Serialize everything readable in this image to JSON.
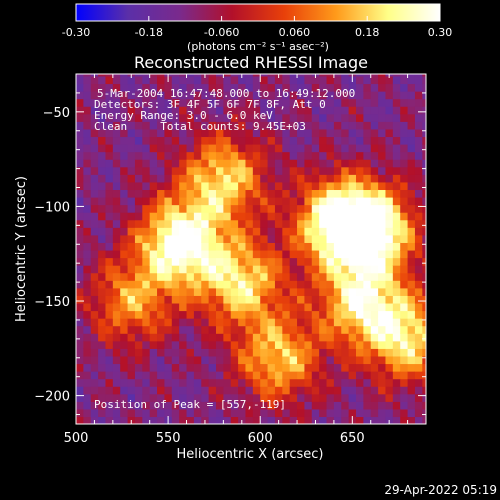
{
  "chart_data": {
    "type": "heatmap",
    "title": "Reconstructed RHESSI Image",
    "xlabel": "Heliocentric X (arcsec)",
    "ylabel": "Heliocentric Y (arcsec)",
    "xlim": [
      500,
      690
    ],
    "ylim": [
      -215,
      -30
    ],
    "x_ticks": [
      500,
      550,
      600,
      650
    ],
    "y_ticks": [
      -50,
      -100,
      -150,
      -200
    ],
    "colorbar": {
      "range": [
        -0.3,
        0.3
      ],
      "tick_labels": [
        "-0.30",
        "-0.18",
        "-0.060",
        "0.060",
        "0.18",
        "0.30"
      ],
      "tick_values": [
        -0.3,
        -0.18,
        -0.06,
        0.06,
        0.18,
        0.3
      ],
      "unit_label": "(photons cm⁻² s⁻¹ asec⁻²)",
      "colors": [
        "#0000ff",
        "#5b2fa8",
        "#7a2a8c",
        "#b2102a",
        "#e8400a",
        "#ff9a1a",
        "#ffff88",
        "#ffffff"
      ]
    },
    "annotations": [
      "5-Mar-2004 16:47:48.000 to 16:49:12.000",
      "Detectors: 3F 4F 5F 6F 7F 8F, Att 0",
      "Energy Range: 3.0 - 6.0 keV",
      "Clean     Total counts: 9.45E+03"
    ],
    "peak_label": "Position of Peak = [557,-119]",
    "peak": [
      557,
      -119
    ],
    "sources": [
      {
        "x": 557,
        "y": -119,
        "peak": 0.3
      },
      {
        "x": 642,
        "y": -108,
        "peak": 0.27
      },
      {
        "x": 662,
        "y": -112,
        "peak": 0.24
      },
      {
        "x": 590,
        "y": -140,
        "peak": 0.18
      },
      {
        "x": 655,
        "y": -150,
        "peak": 0.2
      },
      {
        "x": 580,
        "y": -85,
        "peak": 0.17
      },
      {
        "x": 610,
        "y": -180,
        "peak": 0.15
      },
      {
        "x": 680,
        "y": -170,
        "peak": 0.18
      },
      {
        "x": 530,
        "y": -150,
        "peak": 0.1
      }
    ]
  },
  "timestamp": "29-Apr-2022 05:19"
}
